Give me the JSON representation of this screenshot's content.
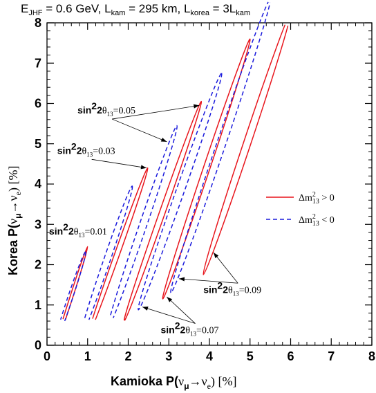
{
  "chart_data": {
    "type": "line",
    "title": "E_JHF = 0.6 GeV, L_kam = 295 km, L_korea = 3L_kam",
    "xlabel": "Kamioka P(ν_μ→ν_e) [%]",
    "ylabel": "Korea P(ν_μ→ν_e) [%]",
    "xlim": [
      0,
      8
    ],
    "ylim": [
      0,
      8
    ],
    "xticks": [
      "0",
      "1",
      "2",
      "3",
      "4",
      "5",
      "6",
      "7",
      "8"
    ],
    "yticks": [
      "0",
      "1",
      "2",
      "3",
      "4",
      "5",
      "6",
      "7",
      "8"
    ],
    "legend": {
      "placement": "right",
      "entries": [
        {
          "label": "Δm²₁₃ > 0",
          "color": "#e8141b",
          "style": "solid"
        },
        {
          "label": "Δm²₁₃ < 0",
          "color": "#1a1adc",
          "style": "dashed"
        }
      ]
    },
    "series": [
      {
        "group": "sin²2θ₁₃=0.01",
        "sign": "positive",
        "ellipse": {
          "p1": [
            0.22,
            0.0
          ],
          "p2": [
            1.0,
            2.45
          ],
          "width": 0.035
        }
      },
      {
        "group": "sin²2θ₁₃=0.01",
        "sign": "negative",
        "ellipse": {
          "p1": [
            0.18,
            0.0
          ],
          "p2": [
            0.95,
            2.32
          ],
          "width": 0.06
        }
      },
      {
        "group": "sin²2θ₁₃=0.03",
        "sign": "positive",
        "ellipse": {
          "p1": [
            1.0,
            0.2
          ],
          "p2": [
            2.48,
            4.4
          ],
          "width": 0.06
        }
      },
      {
        "group": "sin²2θ₁₃=0.03",
        "sign": "negative",
        "ellipse": {
          "p1": [
            0.8,
            0.12
          ],
          "p2": [
            2.1,
            3.95
          ],
          "width": 0.08
        }
      },
      {
        "group": "sin²2θ₁₃=0.05",
        "sign": "positive",
        "ellipse": {
          "p1": [
            1.9,
            0.6
          ],
          "p2": [
            3.8,
            6.05
          ],
          "width": 0.07
        }
      },
      {
        "group": "sin²2θ₁₃=0.05",
        "sign": "negative",
        "ellipse": {
          "p1": [
            1.5,
            0.42
          ],
          "p2": [
            3.2,
            5.45
          ],
          "width": 0.09
        }
      },
      {
        "group": "sin²2θ₁₃=0.07",
        "sign": "positive",
        "ellipse": {
          "p1": [
            2.85,
            1.15
          ],
          "p2": [
            5.0,
            7.6
          ],
          "width": 0.08
        }
      },
      {
        "group": "sin²2θ₁₃=0.07",
        "sign": "negative",
        "ellipse": {
          "p1": [
            2.25,
            0.88
          ],
          "p2": [
            4.3,
            6.75
          ],
          "width": 0.1
        }
      },
      {
        "group": "sin²2θ₁₃=0.09",
        "sign": "positive",
        "ellipse": {
          "p1": [
            3.85,
            1.75
          ],
          "p2": [
            6.0,
            8.25
          ],
          "width": 0.09
        }
      },
      {
        "group": "sin²2θ₁₃=0.09",
        "sign": "negative",
        "ellipse": {
          "p1": [
            3.05,
            1.3
          ],
          "p2": [
            5.5,
            8.6
          ],
          "width": 0.11
        }
      }
    ],
    "annotations": [
      {
        "label": "sin²2θ₁₃=0.01",
        "bold": "sin",
        "sup": "2",
        "rest": "2θ",
        "sub": "13",
        "tail": "=0.01",
        "text_at": [
          0.05,
          2.75
        ],
        "arrows": []
      },
      {
        "label": "sin²2θ₁₃=0.03",
        "bold": "sin",
        "sup": "2",
        "rest": "2θ",
        "sub": "13",
        "tail": "=0.03",
        "text_at": [
          0.25,
          4.75
        ],
        "arrows": [
          [
            2.45,
            4.4
          ]
        ]
      },
      {
        "label": "sin²2θ₁₃=0.05",
        "bold": "sin",
        "sup": "2",
        "rest": "2θ",
        "sub": "13",
        "tail": "=0.05",
        "text_at": [
          0.75,
          5.75
        ],
        "arrows": [
          [
            3.75,
            5.95
          ],
          [
            2.95,
            5.05
          ]
        ]
      },
      {
        "label": "sin²2θ₁₃=0.07",
        "bold": "sin",
        "sup": "2",
        "rest": "2θ",
        "sub": "13",
        "tail": "=0.07",
        "text_at": [
          2.8,
          0.3
        ],
        "arrows": [
          [
            2.95,
            1.2
          ],
          [
            2.35,
            0.95
          ]
        ]
      },
      {
        "label": "sin²2θ₁₃=0.09",
        "bold": "sin",
        "sup": "2",
        "rest": "2θ",
        "sub": "13",
        "tail": "=0.09",
        "text_at": [
          3.85,
          1.3
        ],
        "arrows": [
          [
            4.1,
            2.3
          ],
          [
            3.25,
            1.65
          ]
        ]
      }
    ]
  }
}
